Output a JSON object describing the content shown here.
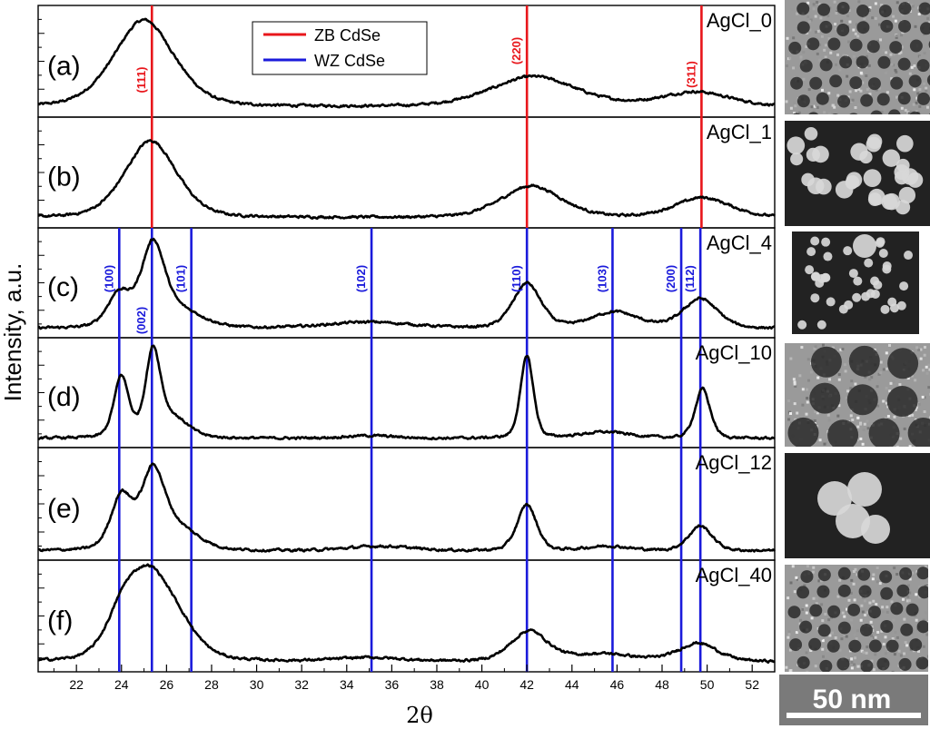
{
  "chart_data": {
    "type": "line",
    "x_label": "2θ",
    "y_label": "Intensity, a.u.",
    "x_range": [
      20.3,
      53
    ],
    "x_ticks": [
      22,
      24,
      26,
      28,
      30,
      32,
      34,
      36,
      38,
      40,
      42,
      44,
      46,
      48,
      50,
      52
    ],
    "legend": {
      "position": "top-center",
      "entries": [
        {
          "name": "ZB CdSe",
          "color": "#e8161b"
        },
        {
          "name": "WZ CdSe",
          "color": "#1a1adb"
        }
      ]
    },
    "reference_lines": {
      "zb": {
        "name": "ZB CdSe",
        "color": "#e8161b",
        "peaks": [
          {
            "x": 25.35,
            "label": "(111)"
          },
          {
            "x": 42.0,
            "label": "(220)"
          },
          {
            "x": 49.75,
            "label": "(311)"
          }
        ]
      },
      "wz": {
        "name": "WZ CdSe",
        "color": "#1a1adb",
        "peaks": [
          {
            "x": 23.9,
            "label": "(100)"
          },
          {
            "x": 25.35,
            "label": "(002)"
          },
          {
            "x": 27.1,
            "label": "(101)"
          },
          {
            "x": 35.1,
            "label": "(102)"
          },
          {
            "x": 42.0,
            "label": "(110)"
          },
          {
            "x": 45.8,
            "label": "(103)"
          },
          {
            "x": 48.85,
            "label": "(200)"
          },
          {
            "x": 49.7,
            "label": "(112)"
          }
        ]
      }
    },
    "panels": [
      {
        "label": "(a)",
        "sample": "AgCl_0",
        "ref": "zb",
        "ref_labels": true,
        "peaks": [
          {
            "c": 25.0,
            "h": 0.95,
            "w": 1.4
          },
          {
            "c": 42.3,
            "h": 0.33,
            "w": 2.0
          },
          {
            "c": 49.5,
            "h": 0.16,
            "w": 1.6
          }
        ],
        "baseline": 0.03
      },
      {
        "label": "(b)",
        "sample": "AgCl_1",
        "ref": "zb",
        "ref_labels": false,
        "peaks": [
          {
            "c": 25.3,
            "h": 0.85,
            "w": 1.2
          },
          {
            "c": 42.2,
            "h": 0.35,
            "w": 1.4
          },
          {
            "c": 49.8,
            "h": 0.22,
            "w": 1.3
          }
        ],
        "baseline": 0.03
      },
      {
        "label": "(c)",
        "sample": "AgCl_4",
        "ref": "wz",
        "ref_labels": true,
        "peaks": [
          {
            "c": 23.9,
            "h": 0.38,
            "w": 0.55
          },
          {
            "c": 25.4,
            "h": 0.9,
            "w": 0.55
          },
          {
            "c": 26.7,
            "h": 0.18,
            "w": 1.0
          },
          {
            "c": 35.0,
            "h": 0.07,
            "w": 2.0
          },
          {
            "c": 42.0,
            "h": 0.5,
            "w": 0.65
          },
          {
            "c": 45.9,
            "h": 0.18,
            "w": 1.1
          },
          {
            "c": 49.7,
            "h": 0.33,
            "w": 0.8
          }
        ],
        "baseline": 0.02
      },
      {
        "label": "(d)",
        "sample": "AgCl_10",
        "ref": "wz",
        "ref_labels": false,
        "peaks": [
          {
            "c": 24.0,
            "h": 0.68,
            "w": 0.35
          },
          {
            "c": 25.4,
            "h": 0.93,
            "w": 0.35
          },
          {
            "c": 26.3,
            "h": 0.22,
            "w": 0.7
          },
          {
            "c": 35.0,
            "h": 0.03,
            "w": 1.2
          },
          {
            "c": 42.0,
            "h": 0.92,
            "w": 0.3
          },
          {
            "c": 45.5,
            "h": 0.07,
            "w": 1.2
          },
          {
            "c": 49.8,
            "h": 0.55,
            "w": 0.35
          }
        ],
        "baseline": 0.02
      },
      {
        "label": "(e)",
        "sample": "AgCl_12",
        "ref": "wz",
        "ref_labels": false,
        "peaks": [
          {
            "c": 24.0,
            "h": 0.58,
            "w": 0.5
          },
          {
            "c": 25.4,
            "h": 0.82,
            "w": 0.55
          },
          {
            "c": 26.6,
            "h": 0.22,
            "w": 0.9
          },
          {
            "c": 35.5,
            "h": 0.05,
            "w": 1.5
          },
          {
            "c": 42.0,
            "h": 0.5,
            "w": 0.45
          },
          {
            "c": 45.6,
            "h": 0.05,
            "w": 1.0
          },
          {
            "c": 49.7,
            "h": 0.27,
            "w": 0.55
          }
        ],
        "baseline": 0.02
      },
      {
        "label": "(f)",
        "sample": "AgCl_40",
        "ref": "wz",
        "ref_labels": false,
        "peaks": [
          {
            "c": 24.1,
            "h": 0.38,
            "w": 0.8
          },
          {
            "c": 25.3,
            "h": 0.85,
            "w": 1.1
          },
          {
            "c": 26.6,
            "h": 0.18,
            "w": 1.0
          },
          {
            "c": 35.0,
            "h": 0.04,
            "w": 1.5
          },
          {
            "c": 42.1,
            "h": 0.33,
            "w": 0.85
          },
          {
            "c": 45.4,
            "h": 0.08,
            "w": 1.5
          },
          {
            "c": 49.6,
            "h": 0.2,
            "w": 0.9
          }
        ],
        "baseline": 0.03
      }
    ]
  },
  "images": [
    {
      "name": "tem-image-agcl-0",
      "style": "dark-dots"
    },
    {
      "name": "tem-image-agcl-1",
      "style": "bright-particles"
    },
    {
      "name": "tem-image-agcl-4",
      "style": "bright-chains"
    },
    {
      "name": "tem-image-agcl-10",
      "style": "dark-large-dots"
    },
    {
      "name": "tem-image-agcl-12",
      "style": "bright-spheres"
    },
    {
      "name": "tem-image-agcl-40",
      "style": "dark-dots"
    }
  ],
  "scale_bar": {
    "label": "50 nm"
  }
}
